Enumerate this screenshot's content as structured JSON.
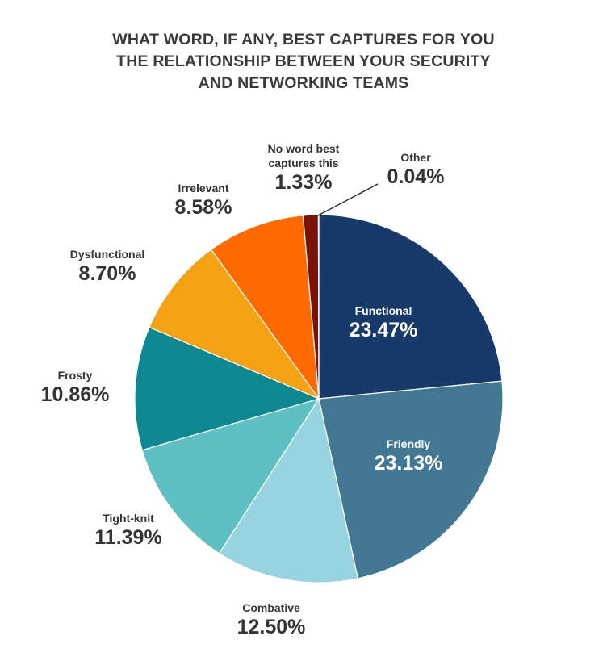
{
  "title_lines": [
    "WHAT WORD, IF ANY, BEST CAPTURES FOR YOU",
    "THE RELATIONSHIP BETWEEN YOUR SECURITY",
    "AND NETWORKING TEAMS"
  ],
  "chart_data": {
    "type": "pie",
    "title": "WHAT WORD, IF ANY, BEST CAPTURES FOR YOU THE RELATIONSHIP BETWEEN YOUR SECURITY AND NETWORKING TEAMS",
    "unit": "%",
    "slices": [
      {
        "label": "Functional",
        "value": 23.47,
        "display": "23.47%",
        "color": "#173a6a"
      },
      {
        "label": "Friendly",
        "value": 23.13,
        "display": "23.13%",
        "color": "#427893"
      },
      {
        "label": "Combative",
        "value": 12.5,
        "display": "12.50%",
        "color": "#98d3e0"
      },
      {
        "label": "Tight-knit",
        "value": 11.39,
        "display": "11.39%",
        "color": "#5fc0c3"
      },
      {
        "label": "Frosty",
        "value": 10.86,
        "display": "10.86%",
        "color": "#0e8890"
      },
      {
        "label": "Dysfunctional",
        "value": 8.7,
        "display": "8.70%",
        "color": "#f5a214"
      },
      {
        "label": "Irrelevant",
        "value": 8.58,
        "display": "8.58%",
        "color": "#ff6a00"
      },
      {
        "label_lines": [
          "No word best",
          "captures this"
        ],
        "value": 1.33,
        "display": "1.33%",
        "color": "#7a1208"
      },
      {
        "label": "Other",
        "value": 0.04,
        "display": "0.04%",
        "color": "#111111"
      }
    ]
  }
}
